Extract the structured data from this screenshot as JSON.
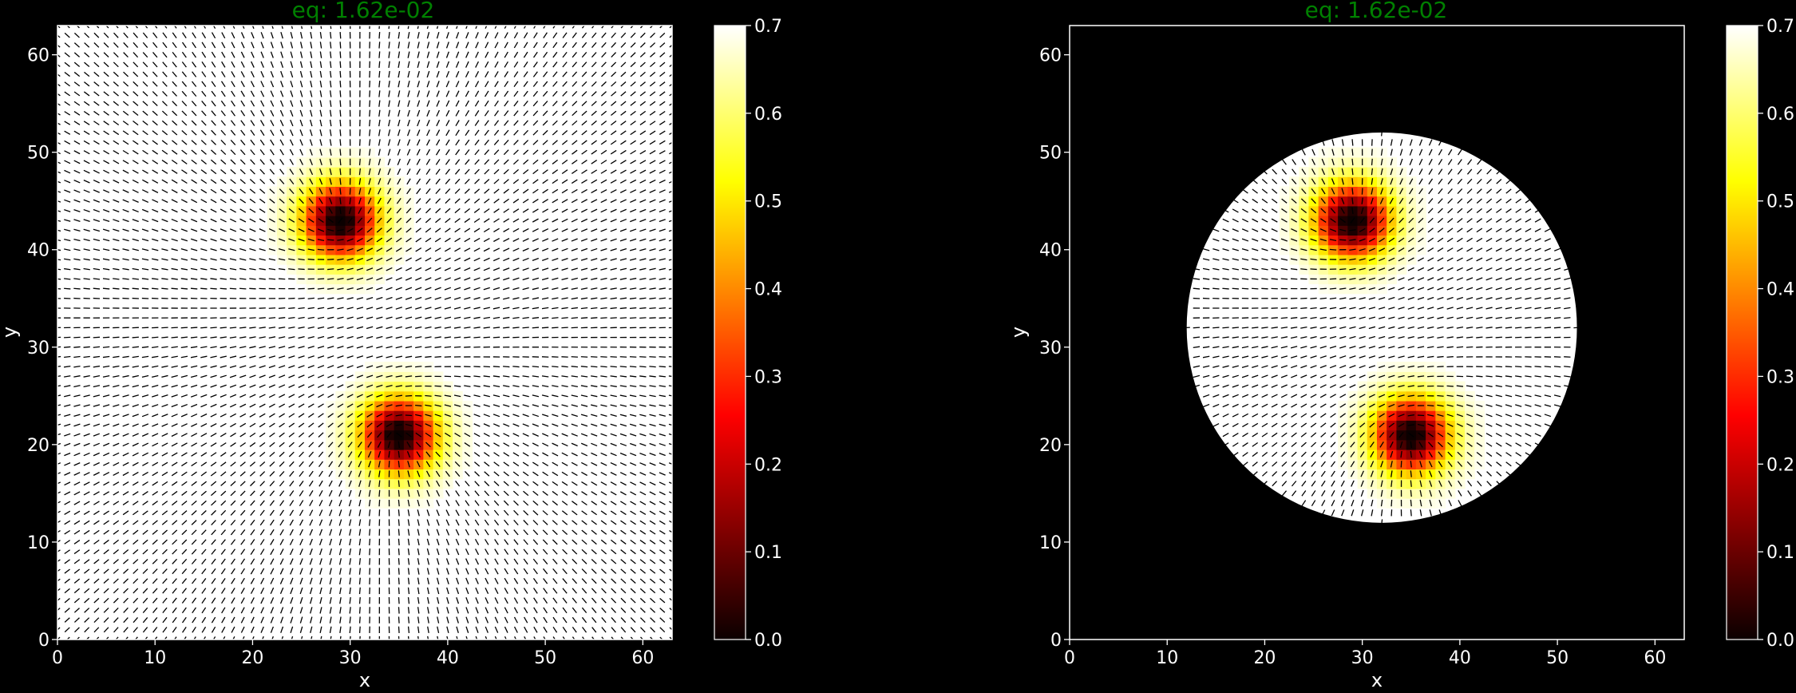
{
  "figure": {
    "background": "#000000",
    "foreground": "#ffffff",
    "title_color": "#008000"
  },
  "chart_data": [
    {
      "type": "heatmap",
      "title": "eq: 1.62e-02",
      "xlabel": "x",
      "ylabel": "y",
      "xlim": [
        0,
        63
      ],
      "ylim": [
        0,
        63
      ],
      "xticks": [
        "0",
        "10",
        "20",
        "30",
        "40",
        "50",
        "60"
      ],
      "yticks": [
        "0",
        "10",
        "20",
        "30",
        "40",
        "50",
        "60"
      ],
      "colormap": "hot",
      "color_range": [
        0,
        0.7
      ],
      "colorbar_ticks": [
        "0.0",
        "0.1",
        "0.2",
        "0.3",
        "0.4",
        "0.5",
        "0.6",
        "0.7"
      ],
      "domain": "square",
      "defects": [
        {
          "x": 29,
          "y": 43,
          "charge": 0.5
        },
        {
          "x": 35,
          "y": 21,
          "charge": 0.5
        }
      ],
      "director_field": "headless line segments on a 64x64 grid, tangent around each defect",
      "grid": false
    },
    {
      "type": "heatmap",
      "title": "eq: 1.62e-02",
      "xlabel": "x",
      "ylabel": "y",
      "xlim": [
        0,
        63
      ],
      "ylim": [
        0,
        63
      ],
      "xticks": [
        "0",
        "10",
        "20",
        "30",
        "40",
        "50",
        "60"
      ],
      "yticks": [
        "0",
        "10",
        "20",
        "30",
        "40",
        "50",
        "60"
      ],
      "colormap": "hot",
      "color_range": [
        0,
        0.7
      ],
      "colorbar_ticks": [
        "0.0",
        "0.1",
        "0.2",
        "0.3",
        "0.4",
        "0.5",
        "0.6",
        "0.7"
      ],
      "domain": "disk",
      "disk": {
        "cx": 32,
        "cy": 32,
        "r": 20
      },
      "defects": [
        {
          "x": 29,
          "y": 43,
          "charge": 0.5
        },
        {
          "x": 35,
          "y": 21,
          "charge": 0.5
        }
      ],
      "director_field": "headless line segments inside the disk, tangent around each defect",
      "grid": false
    }
  ]
}
